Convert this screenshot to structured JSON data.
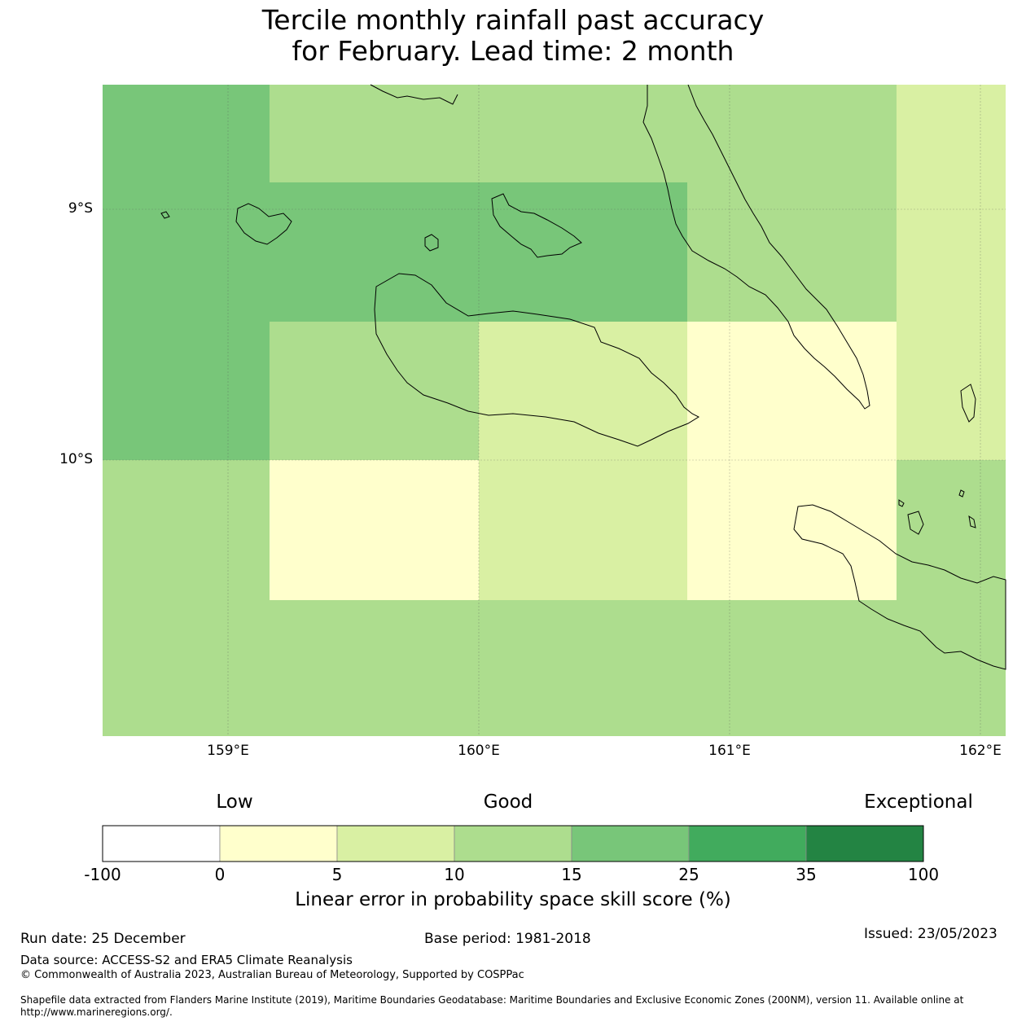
{
  "title": {
    "line1": "Tercile monthly rainfall past accuracy",
    "line2": "for February. Lead time: 2 month"
  },
  "map": {
    "lat_labels": [
      "9°S",
      "10°S"
    ],
    "lon_labels": [
      "159°E",
      "160°E",
      "161°E",
      "162°E"
    ],
    "score_grid": {
      "description_units": "skill score class (%)",
      "lon_edges": [
        158.5,
        159.17,
        160.0,
        160.83,
        161.67,
        162.1
      ],
      "lat_edges": [
        -8.5,
        -8.89,
        -9.44,
        -10.0,
        -10.56,
        -11.1
      ],
      "classes": [
        [
          "15-25",
          "10-15",
          "10-15",
          "10-15",
          "5-10"
        ],
        [
          "15-25",
          "15-25",
          "15-25",
          "10-15",
          "5-10"
        ],
        [
          "15-25",
          "10-15",
          "5-10",
          "0-5",
          "5-10"
        ],
        [
          "10-15",
          "0-5",
          "5-10",
          "0-5",
          "10-15"
        ],
        [
          "10-15",
          "10-15",
          "10-15",
          "10-15",
          "10-15"
        ]
      ]
    }
  },
  "colorbar": {
    "categories": [
      "Low",
      "Good",
      "Exceptional"
    ],
    "ticks": [
      "-100",
      "0",
      "5",
      "10",
      "15",
      "25",
      "35",
      "100"
    ],
    "colors": [
      "#ffffff",
      "#ffffcc",
      "#d9f0a3",
      "#addd8e",
      "#78c679",
      "#41ab5d",
      "#238443"
    ],
    "label": "Linear error in probability space skill score (%)"
  },
  "footer": {
    "run_date": "Run date: 25 December",
    "base_period": "Base period: 1981-2018",
    "issued": "Issued: 23/05/2023",
    "data_source": "Data source: ACCESS-S2 and ERA5 Climate Reanalysis",
    "copyright": "© Commonwealth of Australia 2023, Australian Bureau of Meteorology, Supported by COSPPac",
    "shapefile": "Shapefile data extracted from Flanders Marine Institute (2019), Maritime Boundaries Geodatabase: Maritime Boundaries and Exclusive Economic Zones (200NM), version 11. Available online at http://www.marineregions.org/."
  }
}
